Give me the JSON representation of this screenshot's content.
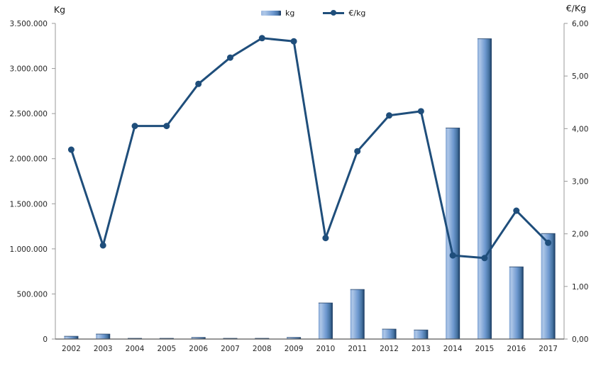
{
  "chart_data": {
    "type": "combo-bar-line",
    "title": "",
    "x_categories": [
      "2002",
      "2003",
      "2004",
      "2005",
      "2006",
      "2007",
      "2008",
      "2009",
      "2010",
      "2011",
      "2012",
      "2013",
      "2014",
      "2015",
      "2016",
      "2017"
    ],
    "series": [
      {
        "name": "kg",
        "type": "bar",
        "axis": "left",
        "values": [
          30000,
          55000,
          6000,
          8000,
          18000,
          7000,
          8000,
          18000,
          400000,
          550000,
          110000,
          100000,
          2340000,
          3330000,
          800000,
          1170000
        ]
      },
      {
        "name": "€/kg",
        "type": "line",
        "axis": "right",
        "values": [
          3.6,
          1.78,
          4.05,
          4.05,
          4.85,
          5.35,
          5.72,
          5.66,
          1.92,
          3.57,
          4.25,
          4.33,
          1.59,
          1.54,
          2.44,
          1.83
        ]
      }
    ],
    "left_axis": {
      "label": "Kg",
      "min": 0,
      "max": 3500000,
      "tick_step": 500000,
      "tick_labels": [
        "0",
        "500.000",
        "1.000.000",
        "1.500.000",
        "2.000.000",
        "2.500.000",
        "3.000.000",
        "3.500.000"
      ]
    },
    "right_axis": {
      "label": "€/Kg",
      "min": 0,
      "max": 6,
      "tick_step": 1,
      "tick_labels": [
        "0,00",
        "1,00",
        "2,00",
        "3,00",
        "4,00",
        "5,00",
        "6,00"
      ]
    },
    "legend": [
      {
        "label": "kg",
        "swatch": "bar"
      },
      {
        "label": "€/kg",
        "swatch": "line-marker"
      }
    ],
    "style": {
      "bar_light": "#aec7e8",
      "bar_mid": "#6d98cf",
      "bar_dark": "#17375e",
      "line_color": "#1f4e7b",
      "axis_color": "#9a9a9a",
      "baseline_color": "#595959",
      "text_color": "#262626",
      "grid": "off",
      "legend_position": "top-center"
    }
  }
}
